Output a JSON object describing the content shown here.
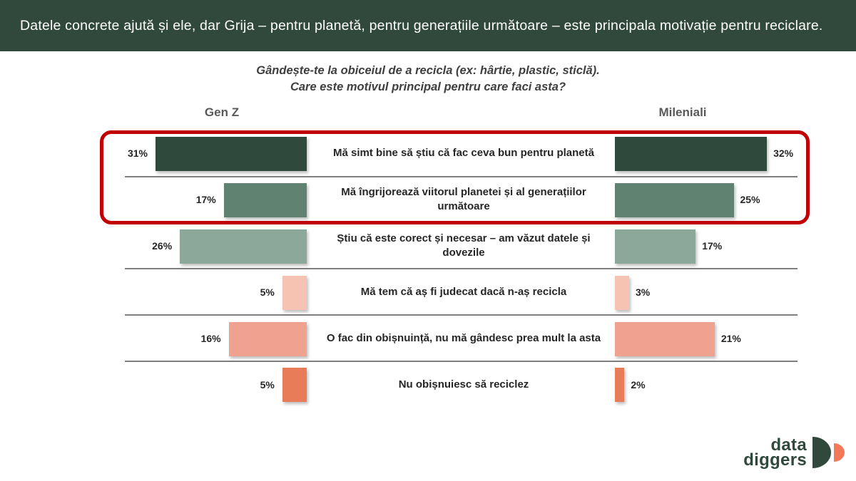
{
  "banner": {
    "text": "Datele concrete ajută și ele, dar Grija – pentru planetă, pentru generațiile următoare – este principala motivație pentru reciclare.",
    "bg": "#31493C"
  },
  "title": {
    "line1": "Gândește-te la obiceiul de a recicla (ex: hârtie, plastic, sticlă).",
    "line2": "Care este motivul principal pentru care faci asta?"
  },
  "chart_data": {
    "type": "bar",
    "orientation": "horizontal-mirrored",
    "title": "Gândește-te la obiceiul de a recicla (ex: hârtie, plastic, sticlă). Care este motivul principal pentru care faci asta?",
    "categories": [
      "Mă simt bine să știu că fac ceva bun pentru planetă",
      "Mă îngrijorează viitorul planetei și al generațiilor următoare",
      "Știu că este corect și necesar – am văzut datele și dovezile",
      "Mă tem că aș fi judecat dacă n-aș recicla",
      "O fac din obișnuință, nu mă gândesc prea mult la asta",
      "Nu obișnuiesc să reciclez"
    ],
    "series": [
      {
        "name": "Gen Z",
        "values": [
          31,
          17,
          26,
          5,
          16,
          5
        ]
      },
      {
        "name": "Mileniali",
        "values": [
          32,
          25,
          17,
          3,
          21,
          2
        ]
      }
    ],
    "value_suffix": "%",
    "row_colors": [
      "#2F4A3D",
      "#5F8271",
      "#8BA89A",
      "#F6C3B2",
      "#EFA28F",
      "#E87C59"
    ],
    "separator_color": "#7f7f7f",
    "highlight": {
      "rows": [
        0,
        1
      ],
      "color": "#C00000"
    },
    "legend_position": "column headers above each bar column",
    "grid": "horizontal gray separators between rows"
  },
  "logo": {
    "line1": "data",
    "line2": "diggers",
    "mark_colors": {
      "large": "#31493C",
      "small": "#F4795B"
    }
  }
}
